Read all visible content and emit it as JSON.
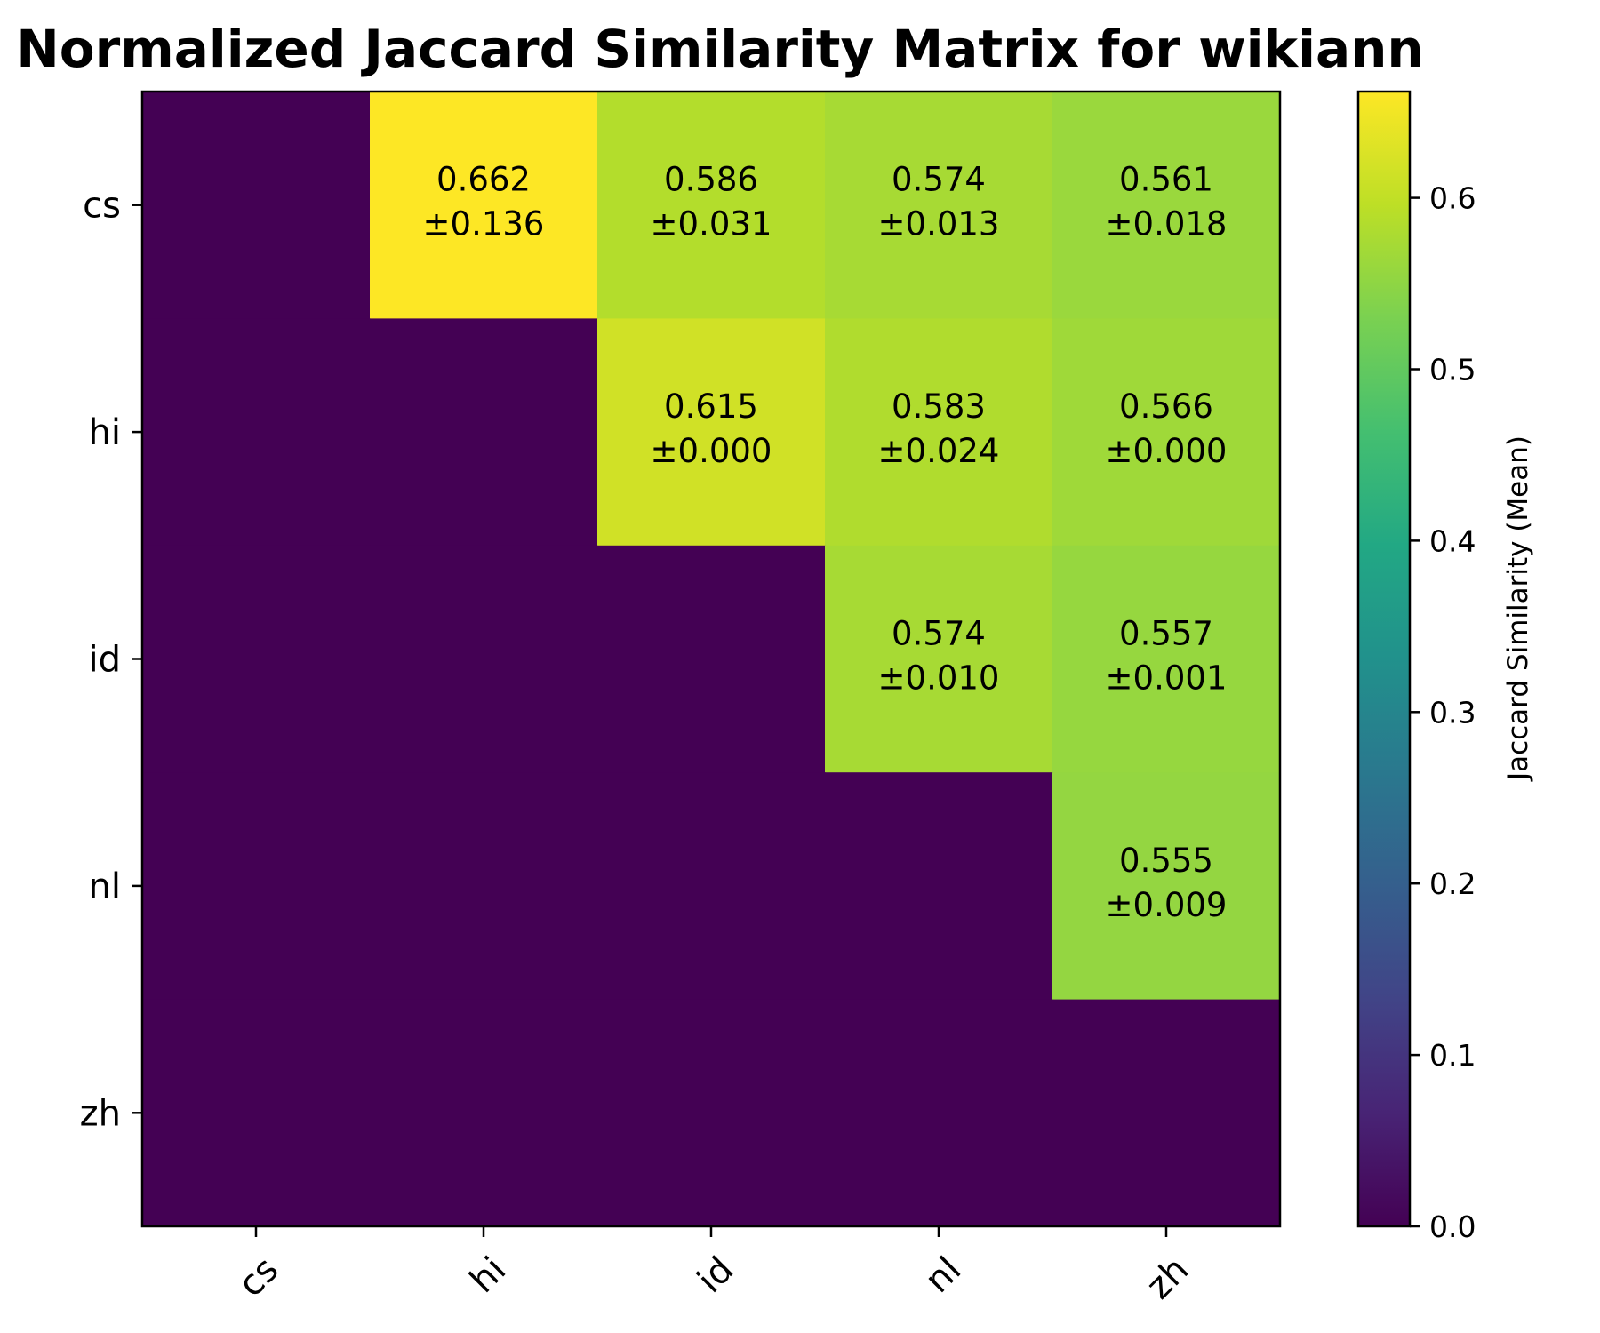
{
  "chart_data": {
    "type": "heatmap",
    "title": "Normalized Jaccard Similarity Matrix for wikiann",
    "row_labels": [
      "cs",
      "hi",
      "id",
      "nl",
      "zh"
    ],
    "col_labels": [
      "cs",
      "hi",
      "id",
      "nl",
      "zh"
    ],
    "values": [
      [
        0,
        0.662,
        0.586,
        0.574,
        0.561
      ],
      [
        0,
        0,
        0.615,
        0.583,
        0.566
      ],
      [
        0,
        0,
        0,
        0.574,
        0.557
      ],
      [
        0,
        0,
        0,
        0,
        0.555
      ],
      [
        0,
        0,
        0,
        0,
        0
      ]
    ],
    "std": [
      [
        null,
        0.136,
        0.031,
        0.013,
        0.018
      ],
      [
        null,
        null,
        0.0,
        0.024,
        0.0
      ],
      [
        null,
        null,
        null,
        0.01,
        0.001
      ],
      [
        null,
        null,
        null,
        null,
        0.009
      ],
      [
        null,
        null,
        null,
        null,
        null
      ]
    ],
    "cell_text": [
      [
        null,
        [
          "0.662",
          "±0.136"
        ],
        [
          "0.586",
          "±0.031"
        ],
        [
          "0.574",
          "±0.013"
        ],
        [
          "0.561",
          "±0.018"
        ]
      ],
      [
        null,
        null,
        [
          "0.615",
          "±0.000"
        ],
        [
          "0.583",
          "±0.024"
        ],
        [
          "0.566",
          "±0.000"
        ]
      ],
      [
        null,
        null,
        null,
        [
          "0.574",
          "±0.010"
        ],
        [
          "0.557",
          "±0.001"
        ]
      ],
      [
        null,
        null,
        null,
        null,
        [
          "0.555",
          "±0.009"
        ]
      ],
      [
        null,
        null,
        null,
        null,
        null
      ]
    ],
    "colormap": "viridis",
    "vmin": 0.0,
    "vmax": 0.662,
    "colorbar": {
      "label": "Jaccard Similarity (Mean)",
      "ticks": [
        0.0,
        0.1,
        0.2,
        0.3,
        0.4,
        0.5,
        0.6
      ],
      "tick_labels": [
        "0.0",
        "0.1",
        "0.2",
        "0.3",
        "0.4",
        "0.5",
        "0.6"
      ]
    },
    "xtick_rotation": 45,
    "grid": false
  }
}
